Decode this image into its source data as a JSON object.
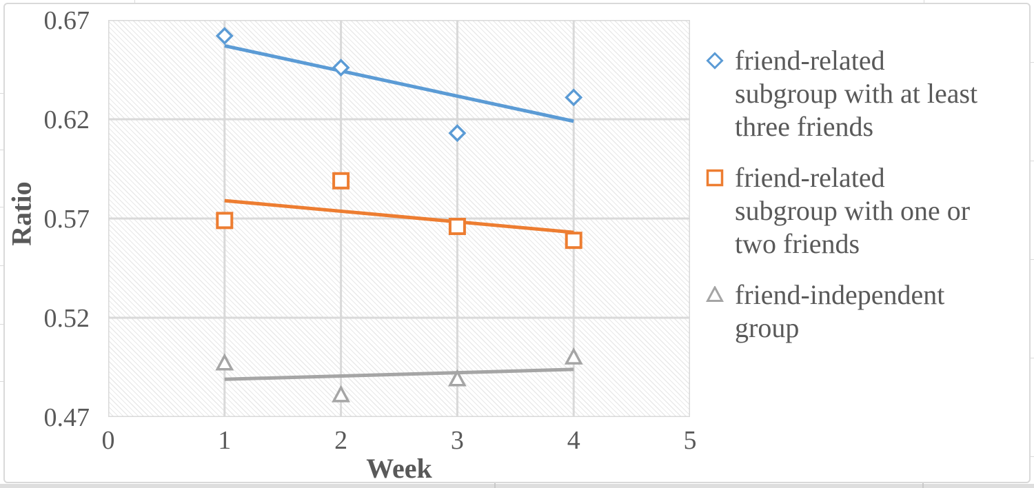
{
  "figure": {
    "background": "#ffffff",
    "frame_border_color": "#d9d9d9",
    "text_color": "#595959",
    "gridline_color": "#d9d9d9",
    "hatch_color": "#e9e9e9"
  },
  "chart_data": {
    "type": "scatter",
    "title": "",
    "xlabel": "Week",
    "ylabel": "Ratio",
    "xlim": [
      0,
      5
    ],
    "ylim": [
      0.47,
      0.67
    ],
    "grid": true,
    "legend_position": "right",
    "x_ticks": [
      {
        "v": 0,
        "label": "0"
      },
      {
        "v": 1,
        "label": "1"
      },
      {
        "v": 2,
        "label": "2"
      },
      {
        "v": 3,
        "label": "3"
      },
      {
        "v": 4,
        "label": "4"
      },
      {
        "v": 5,
        "label": "5"
      }
    ],
    "y_ticks": [
      {
        "v": 0.47,
        "label": "0.47"
      },
      {
        "v": 0.52,
        "label": "0.52"
      },
      {
        "v": 0.57,
        "label": "0.57"
      },
      {
        "v": 0.62,
        "label": "0.62"
      },
      {
        "v": 0.67,
        "label": "0.67"
      }
    ],
    "x": [
      1,
      2,
      3,
      4
    ],
    "series": [
      {
        "name": "friend-related subgroup with at least three friends",
        "name_lines": [
          "friend-related",
          "subgroup with at least",
          "three friends"
        ],
        "marker": "diamond",
        "color": "#5B9BD5",
        "values": [
          0.662,
          0.646,
          0.613,
          0.631
        ],
        "trendline": {
          "x1": 1,
          "y1": 0.657,
          "x2": 4,
          "y2": 0.619
        }
      },
      {
        "name": "friend-related subgroup with one or two friends",
        "name_lines": [
          "friend-related",
          "subgroup with one or",
          "two friends"
        ],
        "marker": "square",
        "color": "#ED7D31",
        "values": [
          0.569,
          0.589,
          0.566,
          0.559
        ],
        "trendline": {
          "x1": 1,
          "y1": 0.579,
          "x2": 4,
          "y2": 0.563
        }
      },
      {
        "name": "friend-independent group",
        "name_lines": [
          "friend-independent",
          "group"
        ],
        "marker": "triangle",
        "color": "#A5A5A5",
        "values": [
          0.497,
          0.481,
          0.489,
          0.5
        ],
        "trendline": {
          "x1": 1,
          "y1": 0.489,
          "x2": 4,
          "y2": 0.494
        }
      }
    ]
  }
}
